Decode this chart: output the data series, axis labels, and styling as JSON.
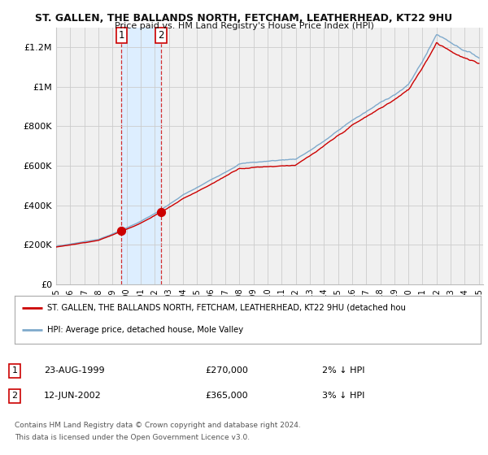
{
  "title": "ST. GALLEN, THE BALLANDS NORTH, FETCHAM, LEATHERHEAD, KT22 9HU",
  "subtitle": "Price paid vs. HM Land Registry's House Price Index (HPI)",
  "ylim": [
    0,
    1300000
  ],
  "yticks": [
    0,
    200000,
    400000,
    600000,
    800000,
    1000000,
    1200000
  ],
  "ytick_labels": [
    "£0",
    "£200K",
    "£400K",
    "£600K",
    "£800K",
    "£1M",
    "£1.2M"
  ],
  "purchase1_date": 1999.64,
  "purchase1_price": 270000,
  "purchase1_label": "1",
  "purchase2_date": 2002.44,
  "purchase2_price": 365000,
  "purchase2_label": "2",
  "property_color": "#cc0000",
  "hpi_color": "#7faacc",
  "shade_color": "#ddeeff",
  "legend_property_text": "ST. GALLEN, THE BALLANDS NORTH, FETCHAM, LEATHERHEAD, KT22 9HU (detached hou",
  "legend_hpi_text": "HPI: Average price, detached house, Mole Valley",
  "table_row1": [
    "1",
    "23-AUG-1999",
    "£270,000",
    "2% ↓ HPI"
  ],
  "table_row2": [
    "2",
    "12-JUN-2002",
    "£365,000",
    "3% ↓ HPI"
  ],
  "footer1": "Contains HM Land Registry data © Crown copyright and database right 2024.",
  "footer2": "This data is licensed under the Open Government Licence v3.0.",
  "bg_color": "#ffffff",
  "plot_bg_color": "#f0f0f0",
  "grid_color": "#cccccc"
}
